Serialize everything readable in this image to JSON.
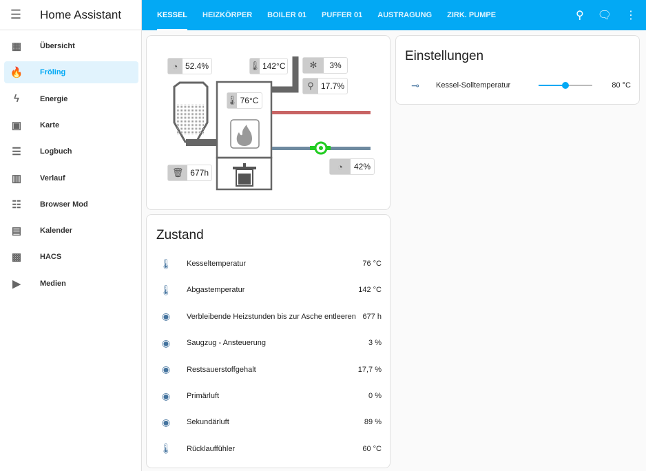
{
  "app": {
    "title": "Home Assistant"
  },
  "sidebar": {
    "items": [
      {
        "label": "Übersicht",
        "icon": "dashboard-icon"
      },
      {
        "label": "Fröling",
        "icon": "fire-icon",
        "active": true
      },
      {
        "label": "Energie",
        "icon": "lightning-icon"
      },
      {
        "label": "Karte",
        "icon": "map-account-icon"
      },
      {
        "label": "Logbuch",
        "icon": "list-icon"
      },
      {
        "label": "Verlauf",
        "icon": "chart-icon"
      },
      {
        "label": "Browser Mod",
        "icon": "server-icon"
      },
      {
        "label": "Kalender",
        "icon": "calendar-icon"
      },
      {
        "label": "HACS",
        "icon": "hacs-icon"
      },
      {
        "label": "Medien",
        "icon": "media-icon"
      }
    ]
  },
  "tabs": [
    "KESSEL",
    "HEIZKÖRPER",
    "BOILER 01",
    "PUFFER 01",
    "AUSTRAGUNG",
    "ZIRK. PUMPE"
  ],
  "diagram": {
    "pellet_level": "52.4%",
    "flue_temp": "142°C",
    "fan": "3%",
    "oxygen": "17.7%",
    "boiler_temp": "76°C",
    "ash_hours": "677h",
    "pump": "42%",
    "colors": {
      "supply": "#c86464",
      "return": "#6e8aa0",
      "pump": "#22cc22"
    }
  },
  "settings": {
    "title": "Einstellungen",
    "slider": {
      "label": "Kessel-Solltemperatur",
      "value": "80 °C",
      "fraction": 0.5
    }
  },
  "zustand": {
    "title": "Zustand",
    "rows": [
      {
        "icon": "thermometer-icon",
        "name": "Kesseltemperatur",
        "value": "76 °C"
      },
      {
        "icon": "thermometer-icon",
        "name": "Abgastemperatur",
        "value": "142 °C"
      },
      {
        "icon": "eye-icon",
        "name": "Verbleibende Heizstunden bis zur Asche entleeren",
        "value": "677 h"
      },
      {
        "icon": "eye-icon",
        "name": "Saugzug - Ansteuerung",
        "value": "3 %"
      },
      {
        "icon": "eye-icon",
        "name": "Restsauerstoffgehalt",
        "value": "17,7 %"
      },
      {
        "icon": "eye-icon",
        "name": "Primärluft",
        "value": "0 %"
      },
      {
        "icon": "eye-icon",
        "name": "Sekundärluft",
        "value": "89 %"
      },
      {
        "icon": "thermometer-icon",
        "name": "Rücklauffühler",
        "value": "60 °C"
      }
    ]
  }
}
